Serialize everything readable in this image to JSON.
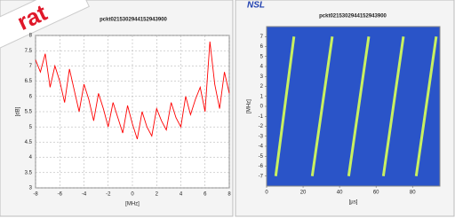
{
  "watermark": "rat",
  "logo": "NSL",
  "chart_data": [
    {
      "type": "line",
      "title": "pckt0215302944152943900",
      "xlabel": "[MHz]",
      "ylabel": "[dB]",
      "xlim": [
        -8,
        8
      ],
      "xticks": [
        -8,
        -6,
        -4,
        -2,
        0,
        2,
        4,
        6,
        8
      ],
      "ylim": [
        3,
        8
      ],
      "yticks": [
        3,
        3.5,
        4,
        4.5,
        5,
        5.5,
        6,
        6.5,
        7,
        7.5,
        8
      ],
      "grid": true,
      "series": [
        {
          "color": "#ff0000",
          "x": [
            -8,
            -7.6,
            -7.2,
            -6.8,
            -6.4,
            -6,
            -5.6,
            -5.2,
            -4.8,
            -4.4,
            -4,
            -3.6,
            -3.2,
            -2.8,
            -2.4,
            -2,
            -1.6,
            -1.2,
            -0.8,
            -0.4,
            0,
            0.4,
            0.8,
            1.2,
            1.6,
            2,
            2.4,
            2.8,
            3.2,
            3.6,
            4,
            4.4,
            4.8,
            5.2,
            5.6,
            6,
            6.4,
            6.8,
            7.2,
            7.6,
            8
          ],
          "values": [
            7.2,
            6.8,
            7.4,
            6.3,
            7.0,
            6.5,
            5.8,
            6.9,
            6.2,
            5.5,
            6.4,
            5.9,
            5.2,
            6.1,
            5.6,
            5.0,
            5.8,
            5.3,
            4.8,
            5.7,
            5.1,
            4.6,
            5.5,
            5.0,
            4.7,
            5.6,
            5.2,
            4.9,
            5.8,
            5.3,
            5.0,
            6.0,
            5.4,
            5.9,
            6.3,
            5.5,
            7.8,
            6.4,
            5.6,
            6.8,
            6.1
          ]
        }
      ]
    },
    {
      "type": "line",
      "title": "pckt0215302944152943900",
      "xlabel": "[µs]",
      "ylabel": "[MHz]",
      "xlim": [
        0,
        95
      ],
      "xticks": [
        0,
        20,
        40,
        60,
        80
      ],
      "ylim": [
        -8,
        8
      ],
      "yticks": [
        -7,
        -6,
        -5,
        -4,
        -3,
        -2,
        -1,
        0,
        1,
        2,
        3,
        4,
        5,
        6,
        7
      ],
      "grid": false,
      "background": "#2a54c8",
      "series": [
        {
          "color": "#c8f060",
          "x": [
            5,
            15
          ],
          "values": [
            -7,
            7
          ]
        },
        {
          "color": "#c8f060",
          "x": [
            25,
            36
          ],
          "values": [
            -7,
            7
          ]
        },
        {
          "color": "#c8f060",
          "x": [
            45,
            56
          ],
          "values": [
            -7,
            7
          ]
        },
        {
          "color": "#c8f060",
          "x": [
            64,
            75
          ],
          "values": [
            -7,
            7
          ]
        },
        {
          "color": "#c8f060",
          "x": [
            82,
            93
          ],
          "values": [
            -7,
            7
          ]
        }
      ]
    }
  ]
}
